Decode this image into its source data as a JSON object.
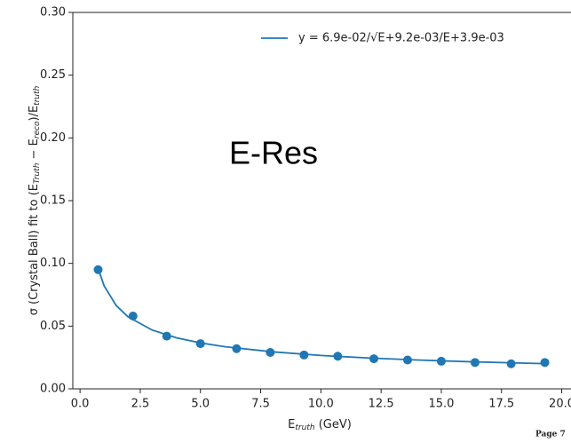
{
  "chart_data": {
    "type": "scatter",
    "annotation": "E-Res",
    "page_label": "Page 7",
    "x_label": [
      "E",
      "truth",
      " (GeV)"
    ],
    "y_label": [
      "σ (Crystal Ball) fit to (E",
      "Truth",
      " − E",
      "reco",
      ")/E",
      "truth"
    ],
    "xlim": [
      -0.3,
      20.3
    ],
    "ylim": [
      0,
      0.3
    ],
    "xticks": [
      {
        "value": 0,
        "label": "0.0"
      },
      {
        "value": 2.5,
        "label": "2.5"
      },
      {
        "value": 5,
        "label": "5.0"
      },
      {
        "value": 7.5,
        "label": "7.5"
      },
      {
        "value": 10,
        "label": "10.0"
      },
      {
        "value": 12.5,
        "label": "12.5"
      },
      {
        "value": 15,
        "label": "15.0"
      },
      {
        "value": 17.5,
        "label": "17.5"
      },
      {
        "value": 20,
        "label": "20.0"
      }
    ],
    "yticks": [
      {
        "value": 0,
        "label": "0.00"
      },
      {
        "value": 0.05,
        "label": "0.05"
      },
      {
        "value": 0.1,
        "label": "0.10"
      },
      {
        "value": 0.15,
        "label": "0.15"
      },
      {
        "value": 0.2,
        "label": "0.20"
      },
      {
        "value": 0.25,
        "label": "0.25"
      },
      {
        "value": 0.3,
        "label": "0.30"
      }
    ],
    "points": {
      "color": "#1f77b4",
      "x": [
        0.75,
        2.2,
        3.6,
        5.0,
        6.5,
        7.9,
        9.3,
        10.7,
        12.2,
        13.6,
        15.0,
        16.4,
        17.9,
        19.3
      ],
      "values": [
        0.095,
        0.058,
        0.042,
        0.036,
        0.032,
        0.029,
        0.027,
        0.026,
        0.024,
        0.023,
        0.022,
        0.021,
        0.02,
        0.021
      ]
    },
    "fit": {
      "name": "y = 6.9e-02/√E+9.2e-03/E+3.9e-03",
      "color": "#1f77b4",
      "x": [
        0.75,
        1,
        1.5,
        2,
        3,
        4,
        5,
        6,
        8,
        10,
        12,
        14,
        16,
        18,
        19.3
      ],
      "values": [
        0.0959,
        0.0821,
        0.0664,
        0.0573,
        0.0468,
        0.0407,
        0.0366,
        0.0336,
        0.0295,
        0.0266,
        0.0246,
        0.023,
        0.0217,
        0.0207,
        0.0201
      ]
    },
    "legend": "upper right"
  }
}
